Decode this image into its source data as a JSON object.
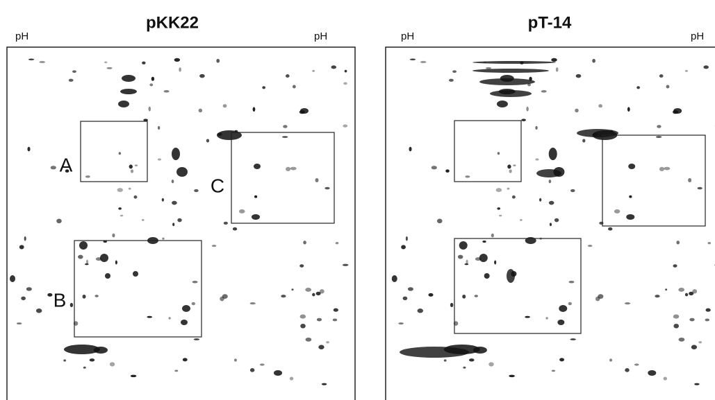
{
  "panels": [
    {
      "title": "pKK22",
      "ph_left": "pH",
      "ph_right": "pH",
      "box_labels": [
        "A",
        "C",
        "B"
      ]
    },
    {
      "title": "pT-14",
      "ph_left": "pH",
      "ph_right": "pH"
    }
  ]
}
